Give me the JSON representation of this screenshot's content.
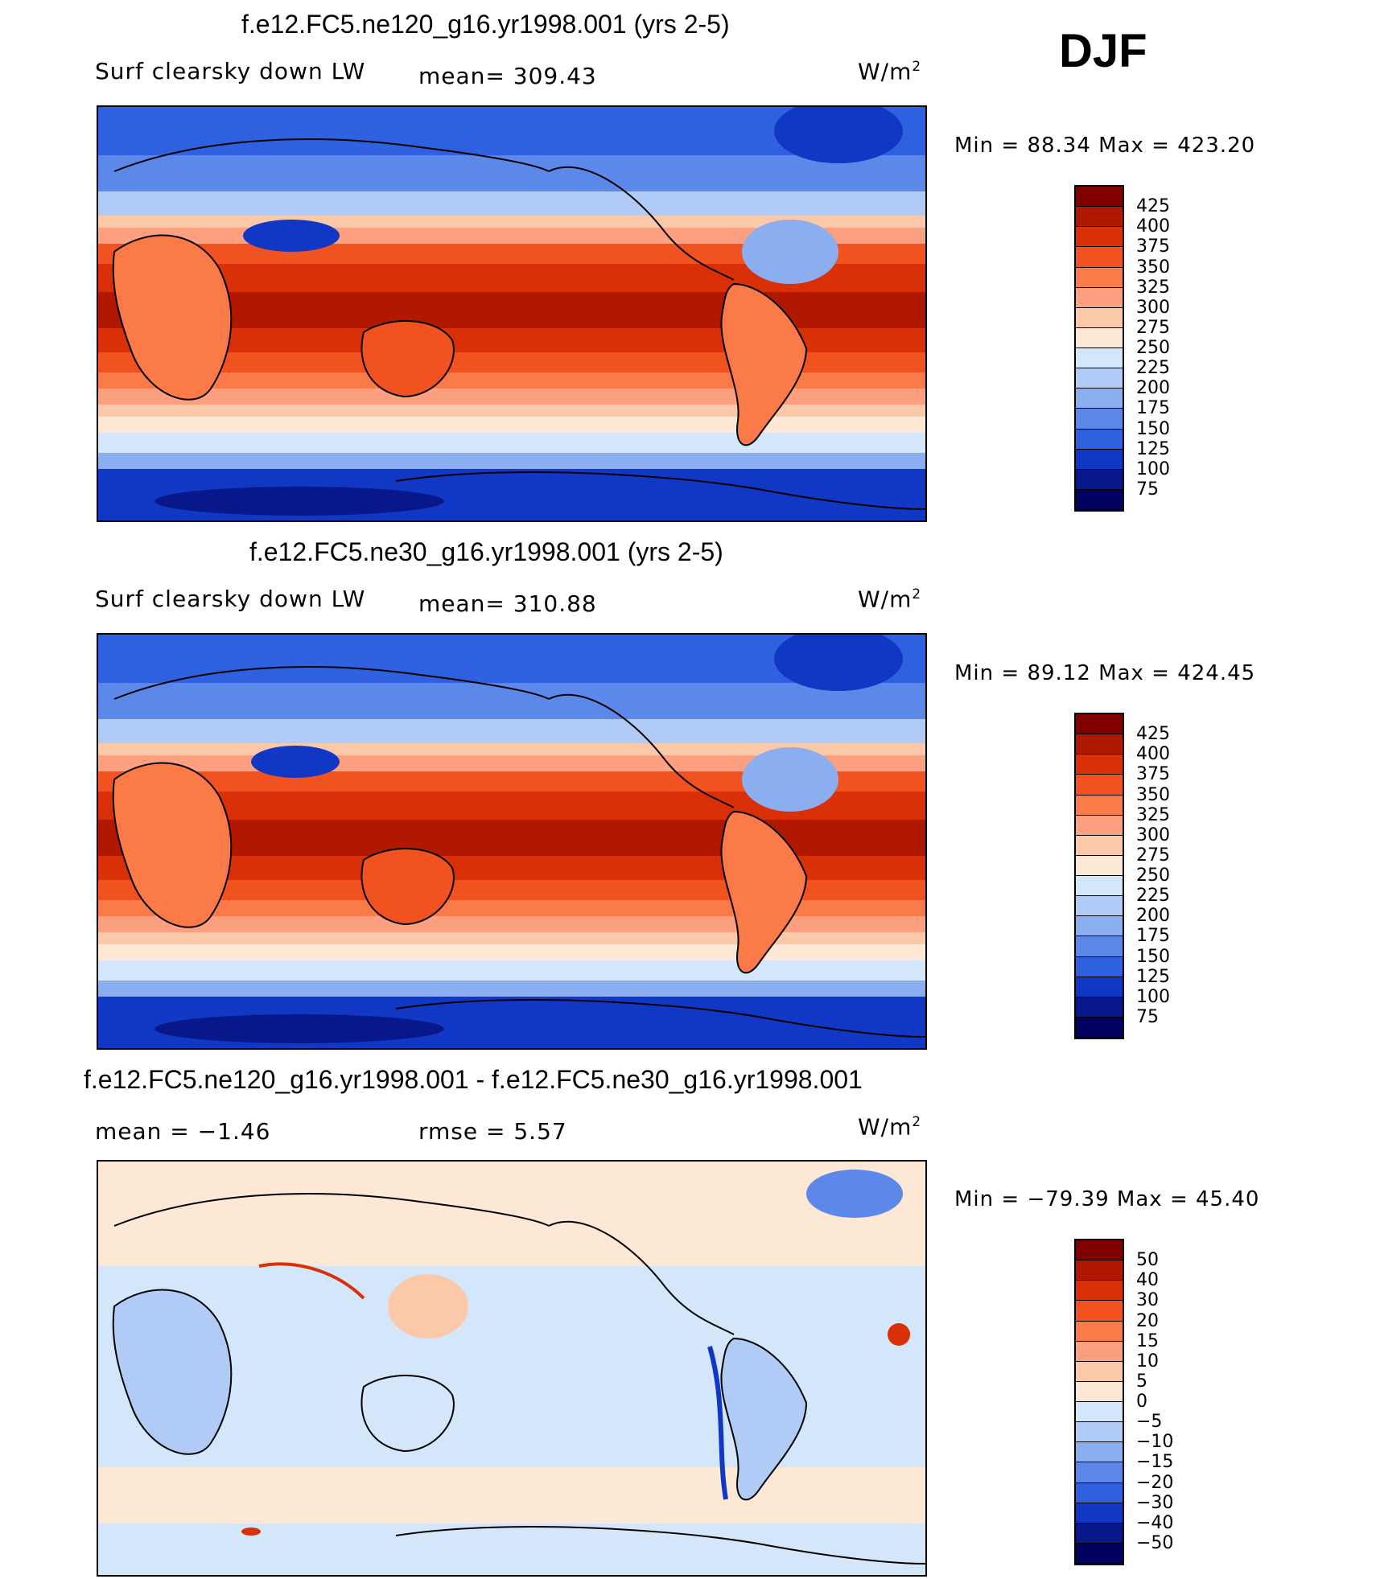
{
  "season": "DJF",
  "panels": [
    {
      "title": "f.e12.FC5.ne120_g16.yr1998.001 (yrs 2-5)",
      "left_label": "Surf clearsky down LW",
      "middle_label": "mean= 309.43",
      "units_label": "W/m",
      "units_power": "2",
      "minmax": "Min =  88.34 Max = 423.20",
      "colorbar_levels": [
        "425",
        "400",
        "375",
        "350",
        "325",
        "300",
        "275",
        "250",
        "225",
        "200",
        "175",
        "150",
        "125",
        "100",
        "75"
      ]
    },
    {
      "title": "f.e12.FC5.ne30_g16.yr1998.001 (yrs 2-5)",
      "left_label": "Surf clearsky down LW",
      "middle_label": "mean= 310.88",
      "units_label": "W/m",
      "units_power": "2",
      "minmax": "Min =  89.12 Max = 424.45",
      "colorbar_levels": [
        "425",
        "400",
        "375",
        "350",
        "325",
        "300",
        "275",
        "250",
        "225",
        "200",
        "175",
        "150",
        "125",
        "100",
        "75"
      ]
    },
    {
      "title": "f.e12.FC5.ne120_g16.yr1998.001 - f.e12.FC5.ne30_g16.yr1998.001",
      "left_label": "mean =   −1.46",
      "middle_label": "rmse =     5.57",
      "units_label": "W/m",
      "units_power": "2",
      "minmax": "Min = −79.39 Max =  45.40",
      "colorbar_levels": [
        "50",
        "40",
        "30",
        "20",
        "15",
        "10",
        "5",
        "0",
        "−5",
        "−10",
        "−15",
        "−20",
        "−30",
        "−40",
        "−50"
      ]
    }
  ],
  "chart_data": [
    {
      "type": "heatmap",
      "title": "f.e12.FC5.ne120_g16.yr1998.001 (yrs 2-5)",
      "variable": "Surf clearsky down LW",
      "units": "W/m2",
      "mean": 309.43,
      "min": 88.34,
      "max": 423.2,
      "contour_levels": [
        75,
        100,
        125,
        150,
        175,
        200,
        225,
        250,
        275,
        300,
        325,
        350,
        375,
        400,
        425
      ]
    },
    {
      "type": "heatmap",
      "title": "f.e12.FC5.ne30_g16.yr1998.001 (yrs 2-5)",
      "variable": "Surf clearsky down LW",
      "units": "W/m2",
      "mean": 310.88,
      "min": 89.12,
      "max": 424.45,
      "contour_levels": [
        75,
        100,
        125,
        150,
        175,
        200,
        225,
        250,
        275,
        300,
        325,
        350,
        375,
        400,
        425
      ]
    },
    {
      "type": "heatmap",
      "title": "f.e12.FC5.ne120_g16.yr1998.001 - f.e12.FC5.ne30_g16.yr1998.001",
      "units": "W/m2",
      "mean": -1.46,
      "rmse": 5.57,
      "min": -79.39,
      "max": 45.4,
      "contour_levels": [
        -50,
        -40,
        -30,
        -20,
        -15,
        -10,
        -5,
        0,
        5,
        10,
        15,
        20,
        30,
        40,
        50
      ]
    }
  ],
  "colors": {
    "abs_scale": [
      "#800000",
      "#b01800",
      "#d93008",
      "#f25220",
      "#fa7a48",
      "#fca080",
      "#fcc8aa",
      "#fde8d6",
      "#d4e6fa",
      "#b0ccf6",
      "#8aaef0",
      "#5c88ea",
      "#2e60e0",
      "#1038c4",
      "#08188a",
      "#020060"
    ],
    "diff_scale": [
      "#800000",
      "#b01800",
      "#d93008",
      "#f25220",
      "#fa7a48",
      "#fca080",
      "#fcc8aa",
      "#fde8d6",
      "#d4e6fa",
      "#b0ccf6",
      "#8aaef0",
      "#5c88ea",
      "#2e60e0",
      "#1038c4",
      "#08188a",
      "#020060"
    ]
  }
}
